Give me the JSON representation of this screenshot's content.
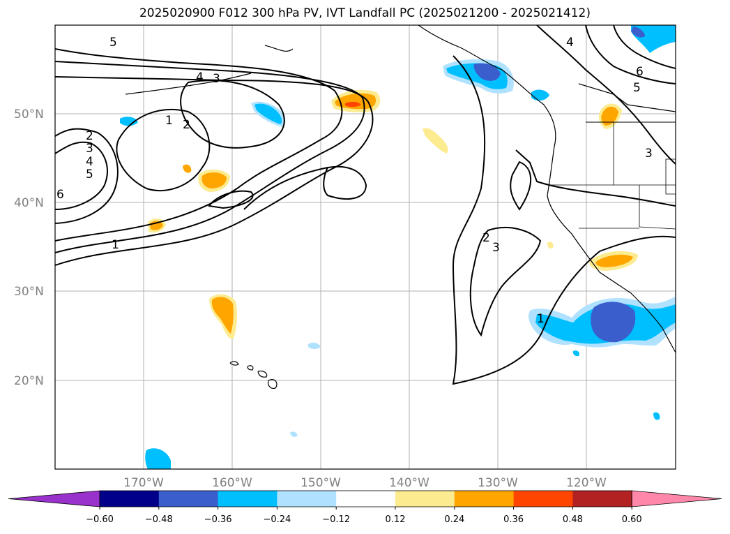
{
  "title": "2025020900 F012 300 hPa PV, IVT Landfall PC (2025021200 - 2025021412)",
  "lat_labels": [
    "50°N",
    "40°N",
    "30°N",
    "20°N"
  ],
  "lon_labels": [
    "170°W",
    "160°W",
    "150°W",
    "140°W",
    "130°W",
    "120°W"
  ],
  "colorbar": {
    "ticks": [
      "−0.60",
      "−0.48",
      "−0.36",
      "−0.24",
      "−0.12",
      "0.12",
      "0.24",
      "0.36",
      "0.48",
      "0.60"
    ],
    "colors": [
      "#9932cc",
      "#00008b",
      "#3a5fcd",
      "#00bfff",
      "#b0e2ff",
      "#ffffff",
      "#fdeb8f",
      "#ffa500",
      "#ff4500",
      "#b22222",
      "#ff88aa"
    ]
  },
  "contour_labels": [
    "5",
    "4",
    "3",
    "1",
    "2",
    "2",
    "3",
    "4",
    "5",
    "6",
    "1",
    "2",
    "3",
    "1",
    "4",
    "6",
    "5",
    "3"
  ],
  "colors": {
    "grid": "#b0b0b0",
    "contour": "#000000",
    "neg_light": "#b0e2ff",
    "neg_mid": "#00bfff",
    "neg_strong": "#3a5fcd",
    "pos_light": "#fdeb8f",
    "pos_mid": "#ffa500",
    "pos_strong": "#ff4500"
  }
}
